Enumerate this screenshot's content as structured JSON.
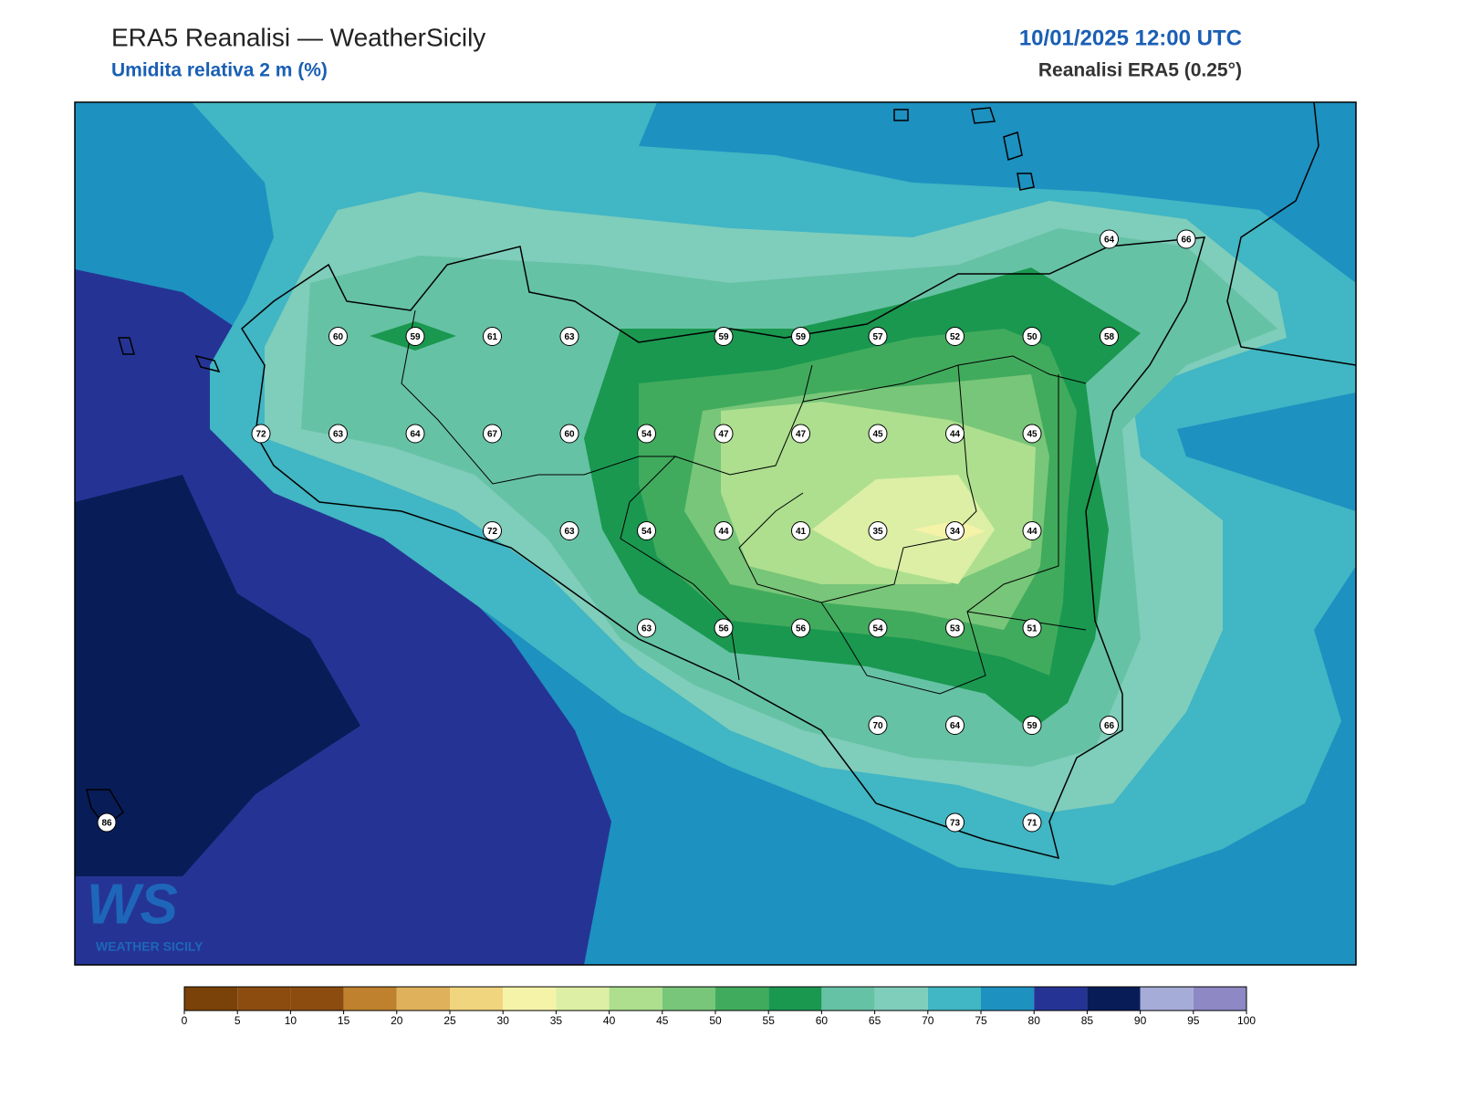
{
  "header": {
    "title": "ERA5 Reanalisi — WeatherSicily",
    "subtitle": "Umidita relativa 2 m (%)",
    "datetime": "10/01/2025 12:00 UTC",
    "source": "Reanalisi ERA5 (0.25°)"
  },
  "stations": {
    "grid": [
      [
        null,
        null,
        null,
        null,
        null,
        null,
        null,
        null,
        null,
        null,
        null,
        null,
        null,
        64,
        66
      ],
      [
        null,
        null,
        null,
        60,
        59,
        61,
        63,
        null,
        59,
        59,
        57,
        52,
        50,
        58,
        null
      ],
      [
        null,
        null,
        72,
        63,
        64,
        67,
        60,
        54,
        47,
        47,
        45,
        44,
        45,
        null,
        null
      ],
      [
        null,
        null,
        null,
        null,
        null,
        72,
        63,
        54,
        44,
        41,
        35,
        34,
        44,
        null,
        null
      ],
      [
        null,
        null,
        null,
        null,
        null,
        null,
        null,
        63,
        56,
        56,
        54,
        53,
        51,
        null,
        null
      ],
      [
        null,
        null,
        null,
        null,
        null,
        null,
        null,
        null,
        null,
        null,
        70,
        64,
        59,
        66,
        null
      ],
      [
        86,
        null,
        null,
        null,
        null,
        null,
        null,
        null,
        null,
        null,
        null,
        73,
        71,
        null,
        null
      ]
    ]
  },
  "colorbar": {
    "ticks": [
      0,
      5,
      10,
      15,
      20,
      25,
      30,
      35,
      40,
      45,
      50,
      55,
      60,
      65,
      70,
      75,
      80,
      85,
      90,
      95,
      100
    ],
    "colors": [
      "#7a4208",
      "#8c4c0f",
      "#8c4c0f",
      "#bf812d",
      "#dfb15b",
      "#f0d47e",
      "#f5f3a8",
      "#dcefa5",
      "#addf8e",
      "#78c679",
      "#41ab5d",
      "#1a9850",
      "#66c2a4",
      "#7fcdbb",
      "#41b6c4",
      "#1d91c0",
      "#253494",
      "#081d58",
      "#a6acd8",
      "#8e88c4"
    ]
  },
  "logo": {
    "mark": "WS",
    "text": "WEATHER SICILY"
  }
}
